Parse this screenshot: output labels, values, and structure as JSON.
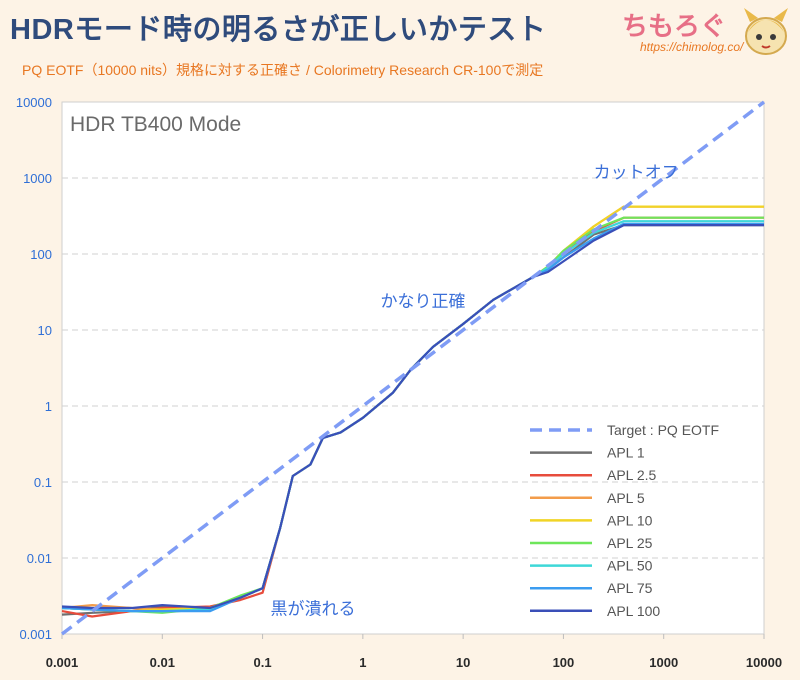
{
  "header": {
    "title": "HDRモード時の明るさが正しいかテスト",
    "subtitle": "PQ EOTF（10000 nits）規格に対する正確さ / Colorimetry Research CR-100で測定",
    "brand": "ちもろぐ",
    "url": "https://chimolog.co/"
  },
  "colors": {
    "target": "#7f9cf5",
    "APL 1": "#707070",
    "APL 2.5": "#e74c3c",
    "APL 5": "#f39c4a",
    "APL 10": "#f1d426",
    "APL 25": "#6ee65a",
    "APL 50": "#3ed8d8",
    "APL 75": "#3b9cf0",
    "APL 100": "#3a4fb8"
  },
  "chart_data": {
    "type": "line",
    "title": "HDR TB400 Mode",
    "xscale": "log",
    "yscale": "log",
    "xlim": [
      0.001,
      10000
    ],
    "ylim": [
      0.001,
      10000
    ],
    "xticks": [
      "0.001",
      "0.01",
      "0.1",
      "1",
      "10",
      "100",
      "1000",
      "10000"
    ],
    "yticks": [
      "0.001",
      "0.01",
      "0.1",
      "1",
      "10",
      "100",
      "1000",
      "10000"
    ],
    "legend_position": "bottom-right",
    "annotations": [
      {
        "text": "カットオフ",
        "x": 200,
        "y": 1000
      },
      {
        "text": "かなり正確",
        "x": 1.5,
        "y": 20
      },
      {
        "text": "黒が潰れる",
        "x": 0.12,
        "y": 0.0018
      }
    ],
    "series": [
      {
        "name": "Target : PQ EOTF",
        "style": "dashed",
        "x": [
          0.001,
          10000
        ],
        "y": [
          0.001,
          10000
        ]
      },
      {
        "name": "APL 1",
        "x": [
          0.001,
          0.002,
          0.005,
          0.01,
          0.03,
          0.06,
          0.1,
          0.15,
          0.2,
          0.3,
          0.4,
          0.6,
          1,
          2,
          3,
          5,
          10,
          20,
          50,
          70,
          100,
          200,
          400,
          1000,
          10000
        ],
        "y": [
          0.0018,
          0.0019,
          0.002,
          0.0023,
          0.0022,
          0.003,
          0.004,
          0.025,
          0.12,
          0.17,
          0.38,
          0.45,
          0.7,
          1.5,
          3,
          6,
          12,
          25,
          50,
          65,
          90,
          180,
          240,
          240,
          240
        ]
      },
      {
        "name": "APL 2.5",
        "x": [
          0.001,
          0.002,
          0.005,
          0.01,
          0.03,
          0.06,
          0.1,
          0.15,
          0.2,
          0.3,
          0.4,
          0.6,
          1,
          2,
          3,
          5,
          10,
          20,
          50,
          70,
          100,
          200,
          400,
          1000,
          10000
        ],
        "y": [
          0.002,
          0.0017,
          0.002,
          0.0022,
          0.0023,
          0.0028,
          0.0035,
          0.025,
          0.12,
          0.17,
          0.38,
          0.45,
          0.7,
          1.5,
          3,
          6,
          12,
          25,
          50,
          65,
          100,
          200,
          300,
          300,
          300
        ]
      },
      {
        "name": "APL 5",
        "x": [
          0.001,
          0.002,
          0.005,
          0.01,
          0.03,
          0.06,
          0.1,
          0.15,
          0.2,
          0.3,
          0.4,
          0.6,
          1,
          2,
          3,
          5,
          10,
          20,
          50,
          70,
          100,
          200,
          400,
          1000,
          10000
        ],
        "y": [
          0.0022,
          0.0024,
          0.0022,
          0.0021,
          0.0022,
          0.003,
          0.004,
          0.025,
          0.12,
          0.17,
          0.38,
          0.45,
          0.7,
          1.5,
          3,
          6,
          12,
          25,
          50,
          68,
          110,
          230,
          420,
          420,
          420
        ]
      },
      {
        "name": "APL 10",
        "x": [
          0.001,
          0.002,
          0.005,
          0.01,
          0.03,
          0.06,
          0.1,
          0.15,
          0.2,
          0.3,
          0.4,
          0.6,
          1,
          2,
          3,
          5,
          10,
          20,
          50,
          70,
          100,
          200,
          400,
          1000,
          10000
        ],
        "y": [
          0.0022,
          0.0021,
          0.002,
          0.0021,
          0.0022,
          0.003,
          0.004,
          0.025,
          0.12,
          0.17,
          0.38,
          0.45,
          0.7,
          1.5,
          3,
          6,
          12,
          25,
          50,
          68,
          110,
          230,
          420,
          420,
          420
        ]
      },
      {
        "name": "APL 25",
        "x": [
          0.001,
          0.002,
          0.005,
          0.01,
          0.03,
          0.06,
          0.1,
          0.15,
          0.2,
          0.3,
          0.4,
          0.6,
          1,
          2,
          3,
          5,
          10,
          20,
          50,
          70,
          100,
          200,
          400,
          1000,
          10000
        ],
        "y": [
          0.0022,
          0.0021,
          0.002,
          0.0019,
          0.0022,
          0.0032,
          0.004,
          0.025,
          0.12,
          0.17,
          0.38,
          0.45,
          0.7,
          1.5,
          3,
          6,
          12,
          25,
          50,
          68,
          110,
          210,
          300,
          300,
          300
        ]
      },
      {
        "name": "APL 50",
        "x": [
          0.001,
          0.002,
          0.005,
          0.01,
          0.03,
          0.06,
          0.1,
          0.15,
          0.2,
          0.3,
          0.4,
          0.6,
          1,
          2,
          3,
          5,
          10,
          20,
          50,
          70,
          100,
          200,
          400,
          1000,
          10000
        ],
        "y": [
          0.0022,
          0.0021,
          0.002,
          0.002,
          0.0021,
          0.003,
          0.004,
          0.025,
          0.12,
          0.17,
          0.38,
          0.45,
          0.7,
          1.5,
          3,
          6,
          12,
          25,
          50,
          66,
          100,
          190,
          270,
          270,
          270
        ]
      },
      {
        "name": "APL 75",
        "x": [
          0.001,
          0.002,
          0.005,
          0.01,
          0.03,
          0.06,
          0.1,
          0.15,
          0.2,
          0.3,
          0.4,
          0.6,
          1,
          2,
          3,
          5,
          10,
          20,
          50,
          70,
          100,
          200,
          400,
          1000,
          10000
        ],
        "y": [
          0.0022,
          0.0021,
          0.002,
          0.002,
          0.002,
          0.003,
          0.004,
          0.025,
          0.12,
          0.17,
          0.38,
          0.45,
          0.7,
          1.5,
          3,
          6,
          12,
          25,
          50,
          62,
          90,
          160,
          250,
          250,
          250
        ]
      },
      {
        "name": "APL 100",
        "x": [
          0.001,
          0.002,
          0.005,
          0.01,
          0.03,
          0.06,
          0.1,
          0.15,
          0.2,
          0.3,
          0.4,
          0.6,
          1,
          2,
          3,
          5,
          10,
          20,
          50,
          70,
          100,
          200,
          400,
          1000,
          10000
        ],
        "y": [
          0.0023,
          0.0022,
          0.0022,
          0.0024,
          0.0022,
          0.003,
          0.004,
          0.025,
          0.12,
          0.17,
          0.38,
          0.45,
          0.7,
          1.5,
          3,
          6,
          12,
          25,
          50,
          58,
          80,
          150,
          240,
          240,
          240
        ]
      }
    ]
  }
}
